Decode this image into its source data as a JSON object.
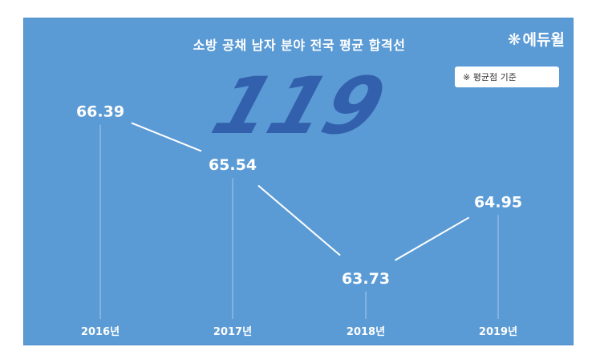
{
  "title": "소방 공채 남자 분야 전국 평균 합격선",
  "brand": {
    "icon": "snowflake-icon",
    "name": "에듀윌"
  },
  "note": "※ 평균점 기준",
  "watermark": "119",
  "colors": {
    "background": "#5b9bd5",
    "line": "#ffffff",
    "watermark": "#2d5aa8"
  },
  "chart_data": {
    "type": "line",
    "title": "소방 공채 남자 분야 전국 평균 합격선",
    "categories": [
      "2016년",
      "2017년",
      "2018년",
      "2019년"
    ],
    "values": [
      66.39,
      65.54,
      63.73,
      64.95
    ],
    "data_labels": [
      "66.39",
      "65.54",
      "63.73",
      "64.95"
    ],
    "ylim": [
      63.0,
      67.0
    ],
    "grid": false,
    "legend": "none"
  }
}
